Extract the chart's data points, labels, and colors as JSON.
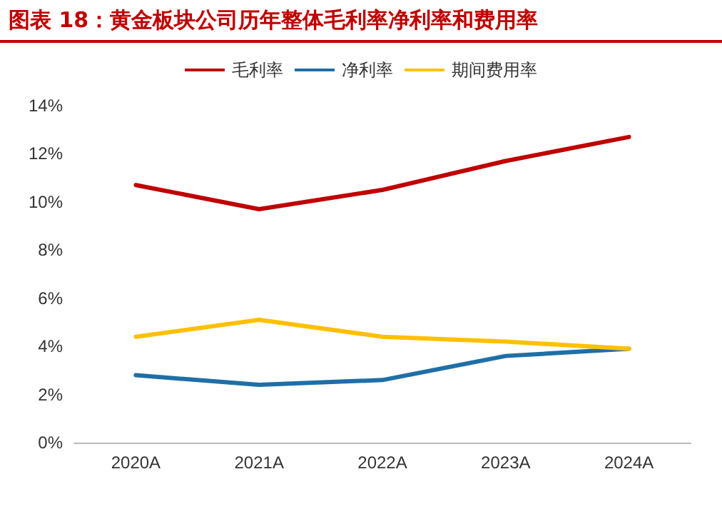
{
  "chart_data": {
    "type": "line",
    "title": "图表 18：黄金板块公司历年整体毛利率净利率和费用率",
    "categories": [
      "2020A",
      "2021A",
      "2022A",
      "2023A",
      "2024A"
    ],
    "series": [
      {
        "name": "毛利率",
        "color": "#c00000",
        "values": [
          10.7,
          9.7,
          10.5,
          11.7,
          12.7
        ]
      },
      {
        "name": "净利率",
        "color": "#1f6fa6",
        "values": [
          2.8,
          2.4,
          2.6,
          3.6,
          3.9
        ]
      },
      {
        "name": "期间费用率",
        "color": "#ffc000",
        "values": [
          4.4,
          5.1,
          4.4,
          4.2,
          3.9
        ]
      }
    ],
    "ylim": [
      0,
      14
    ],
    "yticks": [
      {
        "value": 0,
        "label": "0%"
      },
      {
        "value": 2,
        "label": "2%"
      },
      {
        "value": 4,
        "label": "4%"
      },
      {
        "value": 6,
        "label": "6%"
      },
      {
        "value": 8,
        "label": "8%"
      },
      {
        "value": 10,
        "label": "10%"
      },
      {
        "value": 12,
        "label": "12%"
      },
      {
        "value": 14,
        "label": "14%"
      }
    ],
    "grid": false,
    "legend": "top",
    "marker": "none",
    "line_style": "solid"
  }
}
